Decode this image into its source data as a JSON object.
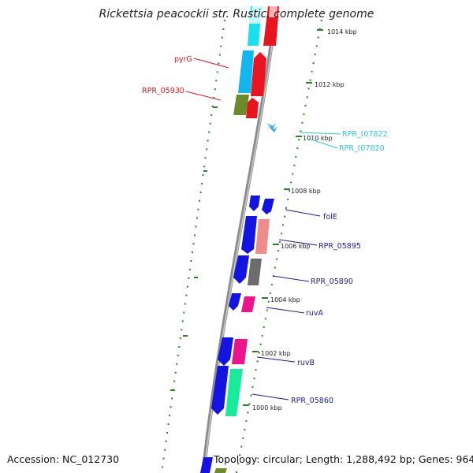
{
  "title": "Rickettsia peacockii str. Rustic, complete genome",
  "footer": {
    "accession": "Accession: NC_012730",
    "summary": "Topology: circular; Length: 1,288,492 bp; Genes: 964"
  },
  "colors": {
    "red_label": "#e8141e",
    "cyan_label": "#30c4e0",
    "blue_label": "#1a1aa6",
    "backbone": "#8c8c8c",
    "tick_green": "#2d7d2d"
  },
  "ticks": [
    {
      "label": "1014 kbp"
    },
    {
      "label": "1012 kbp"
    },
    {
      "label": "1010 kbp"
    },
    {
      "label": "1008 kbp"
    },
    {
      "label": "1006 kbp"
    },
    {
      "label": "1004 kbp"
    },
    {
      "label": "1002 kbp"
    },
    {
      "label": "1000 kbp"
    }
  ],
  "gene_labels": {
    "pyrG": "pyrG",
    "rpr05930": "RPR_05930",
    "rpr_t07822": "RPR_t07822",
    "rpr_t07820": "RPR_t07820",
    "folE": "folE",
    "rpr05895": "RPR_05895",
    "rpr05890": "RPR_05890",
    "ruvA": "ruvA",
    "ruvB": "ruvB",
    "rpr05860": "RPR_05860"
  }
}
